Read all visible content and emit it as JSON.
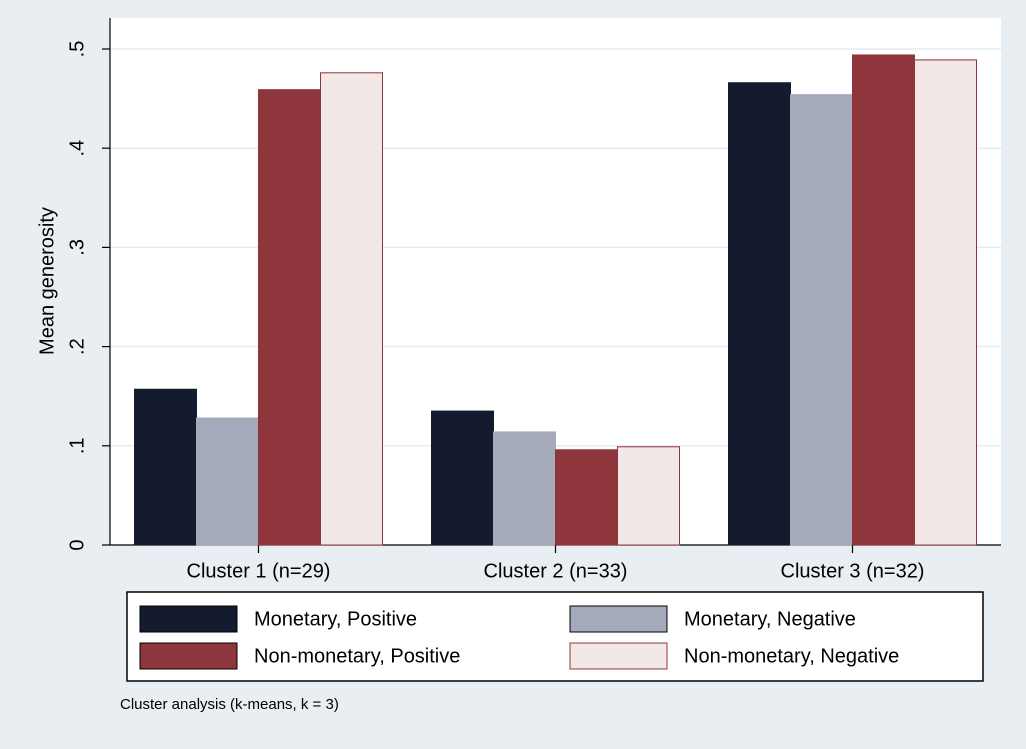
{
  "chart_data": {
    "type": "bar",
    "y_label": "Mean generosity",
    "categories": [
      "Cluster 1 (n=29)",
      "Cluster 2 (n=33)",
      "Cluster 3 (n=32)"
    ],
    "series": [
      {
        "name": "Monetary, Positive",
        "color": "#141b2f",
        "values": [
          0.157,
          0.135,
          0.466
        ]
      },
      {
        "name": "Monetary, Negative",
        "color": "#a5aabb",
        "values": [
          0.128,
          0.114,
          0.454
        ]
      },
      {
        "name": "Non-monetary, Positive",
        "color": "#8f353c",
        "values": [
          0.459,
          0.096,
          0.494
        ]
      },
      {
        "name": "Non-monetary, Negative",
        "color": "#f3e8e8",
        "values": [
          0.476,
          0.099,
          0.489
        ]
      }
    ],
    "ylim": [
      0,
      0.5
    ],
    "yticks": [
      0,
      {
        "value": 0.1,
        "label": ".1"
      },
      {
        "value": 0.2,
        "label": ".2"
      },
      {
        "value": 0.3,
        "label": ".3"
      },
      {
        "value": 0.4,
        "label": ".4"
      },
      {
        "value": 0.5,
        "label": ".5"
      }
    ],
    "grid": true,
    "note": "Cluster analysis (k-means, k = 3)"
  }
}
